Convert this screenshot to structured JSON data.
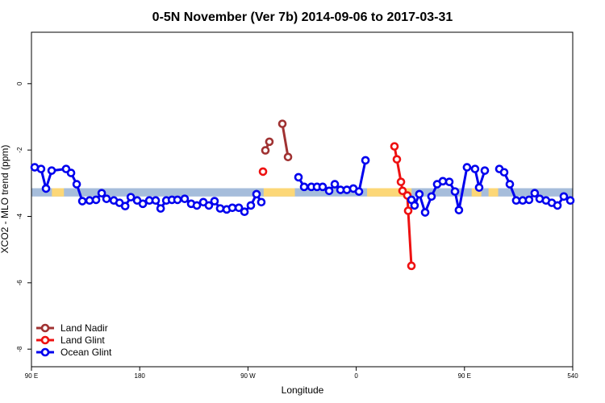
{
  "chart_data": {
    "type": "line",
    "title": "0-5N November (Ver 7b)   2014-09-06 to 2017-03-31",
    "xlabel": "Longitude",
    "ylabel": "XCO2 - MLO trend (ppm)",
    "xlim": [
      90,
      540
    ],
    "ylim": [
      -8.53,
      1.55
    ],
    "xticks": [
      {
        "value": 90,
        "label": "90 E"
      },
      180,
      {
        "value": 270,
        "label": "90 W"
      },
      {
        "value": 360,
        "label": "0"
      },
      {
        "value": 450,
        "label": "90 E"
      },
      540
    ],
    "yticks": [
      0,
      -2,
      -4,
      -6,
      -8
    ],
    "legend": "bottom-left",
    "band": {
      "range": [
        -3.4,
        -3.15
      ],
      "color": "#a6bddb",
      "highlight_color": "#fcd777",
      "highlights": [
        [
          107,
          117
        ],
        [
          283,
          309
        ],
        [
          369,
          406
        ],
        [
          456,
          464
        ],
        [
          470,
          478
        ]
      ]
    },
    "series": [
      {
        "name": "Land Nadir",
        "color": "#a03232",
        "x": [
          284.5,
          287.8,
          null,
          298.6,
          303.3
        ],
        "values": [
          -2.01,
          -1.75,
          null,
          -1.21,
          -2.21
        ]
      },
      {
        "name": "Land Glint",
        "color": "#ee1111",
        "x": [
          282.5,
          null,
          391.8,
          393.8,
          397.2,
          398.5,
          402.5,
          403.2,
          405.9
        ],
        "values": [
          -2.65,
          null,
          -1.89,
          -2.28,
          -2.96,
          -3.23,
          -3.37,
          -3.83,
          -5.49
        ]
      },
      {
        "name": "Ocean Glint",
        "color": "#0000ee",
        "x": [
          92.7,
          98.0,
          102.1,
          106.8,
          118.8,
          122.9,
          127.6,
          132.3,
          138.3,
          143.7,
          148.4,
          152.4,
          158.5,
          163.2,
          167.9,
          172.6,
          177.9,
          182.6,
          188.0,
          193.3,
          197.4,
          202.1,
          206.8,
          211.4,
          217.4,
          222.8,
          227.5,
          232.9,
          237.5,
          242.2,
          246.9,
          252.3,
          257.0,
          262.4,
          267.1,
          272.4,
          277.1,
          281.1,
          null,
          312.0,
          316.7,
          322.7,
          327.4,
          332.1,
          337.5,
          342.2,
          346.9,
          352.2,
          357.6,
          362.3,
          367.7,
          null,
          405.9,
          408.5,
          412.5,
          417.3,
          422.6,
          427.3,
          432.0,
          437.4,
          442.1,
          445.4,
          452.1,
          458.8,
          462.2,
          466.9,
          null,
          479.0,
          483.0,
          487.7,
          493.0,
          498.4,
          503.7,
          508.4,
          512.5,
          517.8,
          522.6,
          527.3,
          532.6,
          538.0
        ],
        "values": [
          -2.52,
          -2.57,
          -3.16,
          -2.62,
          -2.57,
          -2.69,
          -3.03,
          -3.54,
          -3.52,
          -3.5,
          -3.3,
          -3.47,
          -3.52,
          -3.59,
          -3.69,
          -3.42,
          -3.52,
          -3.62,
          -3.52,
          -3.52,
          -3.76,
          -3.52,
          -3.5,
          -3.5,
          -3.47,
          -3.62,
          -3.67,
          -3.57,
          -3.67,
          -3.54,
          -3.76,
          -3.79,
          -3.74,
          -3.74,
          -3.86,
          -3.67,
          -3.33,
          -3.57,
          null,
          -2.82,
          -3.11,
          -3.11,
          -3.11,
          -3.11,
          -3.23,
          -3.03,
          -3.2,
          -3.2,
          -3.16,
          -3.25,
          -2.31,
          null,
          -3.5,
          -3.67,
          -3.33,
          -3.88,
          -3.4,
          -3.03,
          -2.94,
          -2.96,
          -3.25,
          -3.81,
          -2.52,
          -2.57,
          -3.13,
          -2.62,
          null,
          -2.57,
          -2.67,
          -3.03,
          -3.52,
          -3.52,
          -3.5,
          -3.3,
          -3.47,
          -3.52,
          -3.59,
          -3.67,
          -3.4,
          -3.52
        ]
      }
    ]
  }
}
